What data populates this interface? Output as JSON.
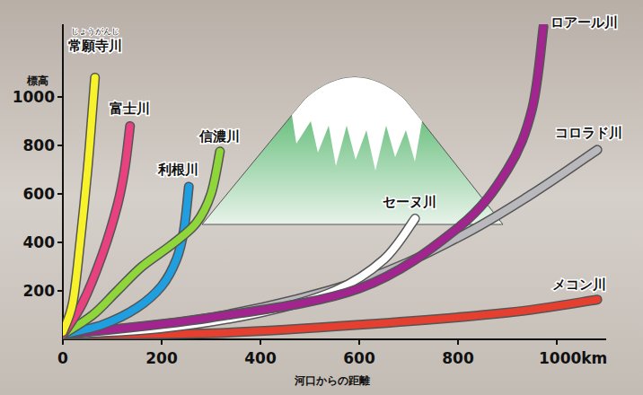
{
  "chart_data": {
    "type": "line",
    "y_label": "標高",
    "x_label": "河口からの距離",
    "xlim": [
      0,
      1100
    ],
    "ylim": [
      0,
      1300
    ],
    "xticks": [
      0,
      200,
      400,
      600,
      800,
      {
        "value": 1000,
        "label": "1000km"
      }
    ],
    "yticks": [
      200,
      400,
      600,
      800,
      1000
    ],
    "series": [
      {
        "name": "常願寺川",
        "ruby": "じょうがんじ",
        "color": "#f7f22a",
        "x": [
          0,
          20,
          35,
          50,
          60,
          65
        ],
        "values": [
          30,
          150,
          400,
          700,
          950,
          1080
        ]
      },
      {
        "name": "富士川",
        "color": "#e8417f",
        "x": [
          0,
          40,
          80,
          110,
          125,
          136
        ],
        "values": [
          20,
          150,
          350,
          550,
          700,
          880
        ]
      },
      {
        "name": "信濃川",
        "color": "#8fd63a",
        "x": [
          0,
          60,
          110,
          160,
          220,
          270,
          300,
          318
        ],
        "values": [
          20,
          100,
          200,
          300,
          390,
          480,
          600,
          775
        ]
      },
      {
        "name": "利根川",
        "color": "#1f9fe0",
        "x": [
          0,
          80,
          150,
          200,
          230,
          245,
          255
        ],
        "values": [
          20,
          60,
          130,
          220,
          330,
          450,
          630
        ]
      },
      {
        "name": "セーヌ川",
        "color": "#ffffff",
        "x": [
          0,
          200,
          400,
          550,
          650,
          713
        ],
        "values": [
          20,
          45,
          110,
          200,
          330,
          498
        ]
      },
      {
        "name": "ロアール川",
        "color": "#a2248f",
        "x": [
          0,
          300,
          600,
          800,
          900,
          950,
          973
        ],
        "values": [
          20,
          90,
          210,
          460,
          700,
          950,
          1290
        ]
      },
      {
        "name": "コロラド川",
        "color": "#b9b9bd",
        "x": [
          0,
          300,
          600,
          800,
          950,
          1082
        ],
        "values": [
          20,
          90,
          240,
          420,
          600,
          782
        ]
      },
      {
        "name": "メコン川",
        "color": "#e5402f",
        "x": [
          0,
          300,
          600,
          900,
          1082
        ],
        "values": [
          20,
          25,
          60,
          110,
          164
        ]
      }
    ]
  }
}
